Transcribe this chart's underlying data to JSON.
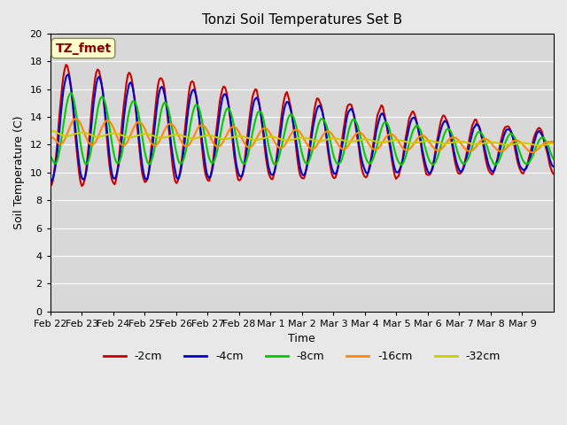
{
  "title": "Tonzi Soil Temperatures Set B",
  "xlabel": "Time",
  "ylabel": "Soil Temperature (C)",
  "annotation": "TZ_fmet",
  "ylim": [
    0,
    20
  ],
  "yticks": [
    0,
    2,
    4,
    6,
    8,
    10,
    12,
    14,
    16,
    18,
    20
  ],
  "x_labels": [
    "Feb 22",
    "Feb 23",
    "Feb 24",
    "Feb 25",
    "Feb 26",
    "Feb 27",
    "Feb 28",
    "Mar 1",
    "Mar 2",
    "Mar 3",
    "Mar 4",
    "Mar 5",
    "Mar 6",
    "Mar 7",
    "Mar 8",
    "Mar 9"
  ],
  "colors": {
    "-2cm": "#cc0000",
    "-4cm": "#0000cc",
    "-8cm": "#00cc00",
    "-16cm": "#ff8800",
    "-32cm": "#cccc00"
  },
  "line_width": 1.5,
  "bg_color": "#e8e8e8",
  "plot_bg_color": "#d8d8d8",
  "annotation_bg": "#ffffcc",
  "annotation_border": "#888855",
  "annotation_text_color": "#880000"
}
